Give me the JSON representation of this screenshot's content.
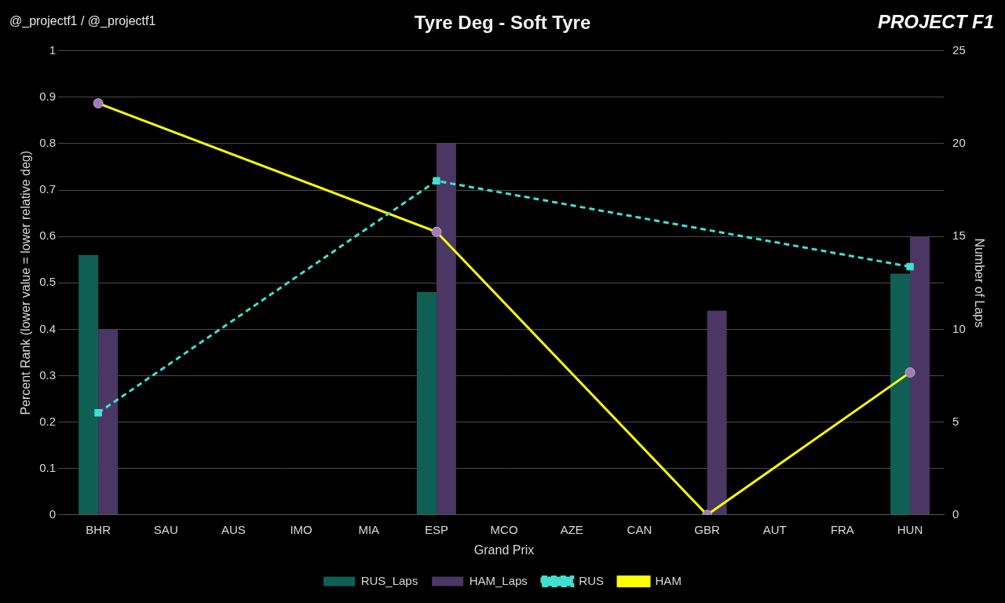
{
  "chart_data": {
    "type": "bar",
    "title": "Tyre Deg - Soft Tyre",
    "x_label": "Grand Prix",
    "y_label": "Percent Rank (lower value = lower relative deg)",
    "y2_label": "Number of Laps",
    "annotations": [
      "@_projectf1 / @_projectf1",
      "PROJECT F1"
    ],
    "categories": [
      "BHR",
      "SAU",
      "AUS",
      "IMO",
      "MIA",
      "ESP",
      "MCO",
      "AZE",
      "CAN",
      "GBR",
      "AUT",
      "FRA",
      "HUN"
    ],
    "ylim": [
      0,
      1
    ],
    "yticks": [
      0,
      0.1,
      0.2,
      0.3,
      0.4,
      0.5,
      0.6,
      0.7,
      0.8,
      0.9,
      1
    ],
    "y2lim": [
      0,
      25
    ],
    "y2ticks": [
      0,
      5,
      10,
      15,
      20,
      25
    ],
    "grid": true,
    "legend": "bottom",
    "series": [
      {
        "name": "RUS_Laps",
        "type": "bar",
        "axis": "y2",
        "color": "#0f5f55",
        "values": [
          14,
          null,
          null,
          null,
          null,
          12,
          null,
          null,
          null,
          null,
          null,
          null,
          13
        ]
      },
      {
        "name": "HAM_Laps",
        "type": "bar",
        "axis": "y2",
        "color": "#4a3763",
        "values": [
          10,
          null,
          null,
          null,
          null,
          20,
          null,
          null,
          null,
          11,
          null,
          null,
          15
        ]
      },
      {
        "name": "RUS",
        "type": "line",
        "axis": "y",
        "color": "#40e0d0",
        "marker": "square",
        "line_style": "dashed",
        "values": [
          0.22,
          null,
          null,
          null,
          null,
          0.72,
          null,
          null,
          null,
          null,
          null,
          null,
          0.535
        ]
      },
      {
        "name": "HAM",
        "type": "line",
        "axis": "y",
        "color": "#ffff00",
        "marker": "circle",
        "line_style": "solid",
        "values": [
          0.887,
          null,
          null,
          null,
          null,
          0.61,
          null,
          null,
          null,
          0.0,
          null,
          null,
          0.307
        ]
      }
    ]
  }
}
